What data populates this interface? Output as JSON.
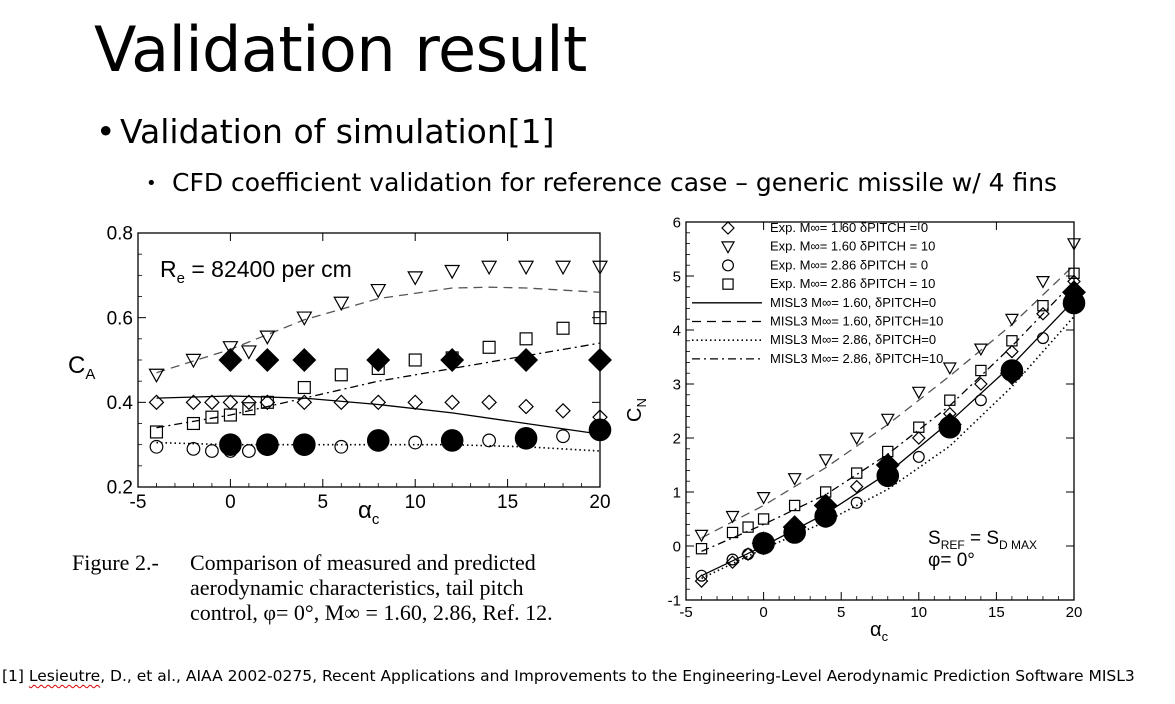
{
  "slide": {
    "title": "Validation result",
    "bullet1": "Validation of simulation[1]",
    "bullet2": "CFD coefficient validation for reference case – generic missile w/ 4 fins"
  },
  "caption": {
    "head": "Figure 2.-",
    "line1": "Comparison of measured and predicted",
    "line2": "aerodynamic characteristics, tail pitch",
    "line3": "control, φ= 0°, M∞ = 1.60, 2.86, Ref. 12."
  },
  "footnote": {
    "prefix": "[1] ",
    "author": "Lesieutre",
    "rest": ", D., et al., AIAA 2002-0275, Recent Applications and Improvements to the Engineering-Level Aerodynamic Prediction Software MISL3"
  },
  "colors": {
    "marker": "#000000",
    "open_marker": "#000000",
    "line": "#000000",
    "dashed_line": "#555555"
  },
  "chart_data": [
    {
      "type": "scatter",
      "ylabel": "C_A",
      "xlabel": "α_c",
      "annotation": "R_e = 82400 per cm",
      "xlim": [
        -5,
        20
      ],
      "ylim": [
        0.2,
        0.8
      ],
      "x_ticks": [
        "-5",
        "0",
        "5",
        "10",
        "15",
        "20"
      ],
      "y_ticks": [
        "0.2",
        "0.4",
        "0.6",
        "0.8"
      ],
      "series": [
        {
          "marker": "diamond-open",
          "points": [
            [
              -4,
              0.4
            ],
            [
              -2,
              0.4
            ],
            [
              -1,
              0.4
            ],
            [
              0,
              0.4
            ],
            [
              1,
              0.4
            ],
            [
              2,
              0.4
            ],
            [
              4,
              0.4
            ],
            [
              6,
              0.4
            ],
            [
              8,
              0.4
            ],
            [
              10,
              0.4
            ],
            [
              12,
              0.4
            ],
            [
              14,
              0.4
            ],
            [
              16,
              0.39
            ],
            [
              18,
              0.38
            ],
            [
              20,
              0.365
            ]
          ]
        },
        {
          "marker": "triangle-down-open",
          "points": [
            [
              -4,
              0.465
            ],
            [
              -2,
              0.5
            ],
            [
              0,
              0.53
            ],
            [
              1,
              0.52
            ],
            [
              2,
              0.555
            ],
            [
              4,
              0.6
            ],
            [
              6,
              0.635
            ],
            [
              8,
              0.665
            ],
            [
              10,
              0.695
            ],
            [
              12,
              0.71
            ],
            [
              14,
              0.72
            ],
            [
              16,
              0.72
            ],
            [
              18,
              0.72
            ],
            [
              20,
              0.72
            ]
          ]
        },
        {
          "marker": "circle-open",
          "points": [
            [
              -4,
              0.295
            ],
            [
              -2,
              0.29
            ],
            [
              -1,
              0.285
            ],
            [
              0,
              0.285
            ],
            [
              1,
              0.285
            ],
            [
              2,
              0.29
            ],
            [
              4,
              0.29
            ],
            [
              6,
              0.295
            ],
            [
              8,
              0.3
            ],
            [
              10,
              0.305
            ],
            [
              12,
              0.31
            ],
            [
              14,
              0.31
            ],
            [
              16,
              0.315
            ],
            [
              18,
              0.32
            ],
            [
              20,
              0.325
            ]
          ]
        },
        {
          "marker": "square-open",
          "points": [
            [
              -4,
              0.33
            ],
            [
              -2,
              0.35
            ],
            [
              -1,
              0.365
            ],
            [
              0,
              0.37
            ],
            [
              1,
              0.385
            ],
            [
              2,
              0.4
            ],
            [
              4,
              0.435
            ],
            [
              6,
              0.465
            ],
            [
              8,
              0.48
            ],
            [
              10,
              0.5
            ],
            [
              12,
              0.505
            ],
            [
              14,
              0.53
            ],
            [
              16,
              0.55
            ],
            [
              18,
              0.575
            ],
            [
              20,
              0.6
            ]
          ]
        },
        {
          "marker": "diamond-filled",
          "points": [
            [
              0,
              0.5
            ],
            [
              2,
              0.5
            ],
            [
              4,
              0.5
            ],
            [
              8,
              0.5
            ],
            [
              12,
              0.5
            ],
            [
              16,
              0.5
            ],
            [
              20,
              0.5
            ]
          ]
        },
        {
          "marker": "circle-filled",
          "points": [
            [
              0,
              0.3
            ],
            [
              2,
              0.3
            ],
            [
              4,
              0.3
            ],
            [
              8,
              0.31
            ],
            [
              12,
              0.31
            ],
            [
              16,
              0.315
            ],
            [
              20,
              0.335
            ]
          ]
        },
        {
          "line": "solid",
          "points": [
            [
              -4,
              0.41
            ],
            [
              0,
              0.415
            ],
            [
              4,
              0.41
            ],
            [
              8,
              0.395
            ],
            [
              12,
              0.375
            ],
            [
              16,
              0.35
            ],
            [
              20,
              0.325
            ]
          ]
        },
        {
          "line": "dashed",
          "points": [
            [
              -4,
              0.47
            ],
            [
              0,
              0.525
            ],
            [
              4,
              0.595
            ],
            [
              8,
              0.645
            ],
            [
              12,
              0.67
            ],
            [
              14,
              0.672
            ],
            [
              16,
              0.67
            ],
            [
              20,
              0.66
            ]
          ]
        },
        {
          "line": "dotted",
          "points": [
            [
              -4,
              0.305
            ],
            [
              0,
              0.3
            ],
            [
              4,
              0.3
            ],
            [
              8,
              0.3
            ],
            [
              12,
              0.3
            ],
            [
              16,
              0.295
            ],
            [
              20,
              0.285
            ]
          ]
        },
        {
          "line": "dashdot",
          "points": [
            [
              -4,
              0.34
            ],
            [
              0,
              0.37
            ],
            [
              4,
              0.41
            ],
            [
              8,
              0.45
            ],
            [
              12,
              0.48
            ],
            [
              16,
              0.51
            ],
            [
              20,
              0.54
            ]
          ]
        }
      ]
    },
    {
      "type": "scatter",
      "ylabel": "C_N",
      "xlabel": "α_c",
      "annotation": "S_REF = S_D MAX, φ= 0°",
      "xlim": [
        -5,
        20
      ],
      "ylim": [
        -1,
        6
      ],
      "x_ticks": [
        "-5",
        "0",
        "5",
        "10",
        "15",
        "20"
      ],
      "y_ticks": [
        "-1",
        "0",
        "1",
        "2",
        "3",
        "4",
        "5",
        "6"
      ],
      "legend": [
        {
          "label": "Exp. M∞= 1.60 δPITCH = 0",
          "marker": "diamond-open"
        },
        {
          "label": "Exp. M∞= 1.60 δPITCH = 10",
          "marker": "triangle-down-open"
        },
        {
          "label": "Exp. M∞= 2.86 δPITCH = 0",
          "marker": "circle-open"
        },
        {
          "label": "Exp. M∞= 2.86 δPITCH = 10",
          "marker": "square-open"
        },
        {
          "label": "MISL3 M∞= 1.60, δPITCH=0",
          "line": "solid"
        },
        {
          "label": "MISL3 M∞= 1.60, δPITCH=10",
          "line": "dashed"
        },
        {
          "label": "MISL3 M∞= 2.86, δPITCH=0",
          "line": "dotted"
        },
        {
          "label": "MISL3 M∞= 2.86, δPITCH=10",
          "line": "dashdot"
        }
      ],
      "series": [
        {
          "marker": "diamond-open",
          "points": [
            [
              -4,
              -0.65
            ],
            [
              -2,
              -0.3
            ],
            [
              -1,
              -0.15
            ],
            [
              0,
              0.0
            ],
            [
              2,
              0.3
            ],
            [
              4,
              0.65
            ],
            [
              6,
              1.1
            ],
            [
              8,
              1.5
            ],
            [
              10,
              2.0
            ],
            [
              12,
              2.45
            ],
            [
              14,
              3.0
            ],
            [
              16,
              3.6
            ],
            [
              18,
              4.3
            ],
            [
              20,
              4.9
            ]
          ]
        },
        {
          "marker": "triangle-down-open",
          "points": [
            [
              -4,
              0.2
            ],
            [
              -2,
              0.55
            ],
            [
              0,
              0.9
            ],
            [
              2,
              1.25
            ],
            [
              4,
              1.6
            ],
            [
              6,
              2.0
            ],
            [
              8,
              2.35
            ],
            [
              10,
              2.85
            ],
            [
              12,
              3.3
            ],
            [
              14,
              3.65
            ],
            [
              16,
              4.2
            ],
            [
              18,
              4.9
            ],
            [
              20,
              5.6
            ]
          ]
        },
        {
          "marker": "circle-open",
          "points": [
            [
              -4,
              -0.55
            ],
            [
              -2,
              -0.25
            ],
            [
              -1,
              -0.15
            ],
            [
              0,
              0.0
            ],
            [
              2,
              0.2
            ],
            [
              4,
              0.45
            ],
            [
              6,
              0.8
            ],
            [
              8,
              1.25
            ],
            [
              10,
              1.65
            ],
            [
              12,
              2.15
            ],
            [
              14,
              2.7
            ],
            [
              16,
              3.25
            ],
            [
              18,
              3.85
            ],
            [
              20,
              4.55
            ]
          ]
        },
        {
          "marker": "square-open",
          "points": [
            [
              -4,
              -0.05
            ],
            [
              -2,
              0.25
            ],
            [
              -1,
              0.35
            ],
            [
              0,
              0.5
            ],
            [
              2,
              0.75
            ],
            [
              4,
              1.0
            ],
            [
              6,
              1.35
            ],
            [
              8,
              1.75
            ],
            [
              10,
              2.2
            ],
            [
              12,
              2.7
            ],
            [
              14,
              3.25
            ],
            [
              16,
              3.8
            ],
            [
              18,
              4.45
            ],
            [
              20,
              5.05
            ]
          ]
        },
        {
          "marker": "diamond-filled",
          "points": [
            [
              0,
              0.05
            ],
            [
              2,
              0.35
            ],
            [
              4,
              0.75
            ],
            [
              8,
              1.5
            ],
            [
              12,
              2.25
            ],
            [
              16,
              3.2
            ],
            [
              20,
              4.7
            ]
          ]
        },
        {
          "marker": "circle-filled",
          "points": [
            [
              0,
              0.05
            ],
            [
              2,
              0.25
            ],
            [
              4,
              0.55
            ],
            [
              8,
              1.3
            ],
            [
              12,
              2.2
            ],
            [
              16,
              3.25
            ],
            [
              20,
              4.5
            ]
          ]
        },
        {
          "line": "solid",
          "points": [
            [
              -4,
              -0.55
            ],
            [
              0,
              0.0
            ],
            [
              4,
              0.6
            ],
            [
              8,
              1.35
            ],
            [
              12,
              2.3
            ],
            [
              16,
              3.35
            ],
            [
              20,
              4.55
            ]
          ]
        },
        {
          "line": "dashed",
          "points": [
            [
              -4,
              0.15
            ],
            [
              0,
              0.75
            ],
            [
              4,
              1.45
            ],
            [
              8,
              2.25
            ],
            [
              12,
              3.15
            ],
            [
              16,
              4.1
            ],
            [
              20,
              5.2
            ]
          ]
        },
        {
          "line": "dotted",
          "points": [
            [
              -4,
              -0.6
            ],
            [
              0,
              -0.05
            ],
            [
              4,
              0.45
            ],
            [
              8,
              1.05
            ],
            [
              12,
              1.85
            ],
            [
              16,
              2.95
            ],
            [
              20,
              4.25
            ]
          ]
        },
        {
          "line": "dashdot",
          "points": [
            [
              -4,
              -0.1
            ],
            [
              0,
              0.4
            ],
            [
              4,
              0.95
            ],
            [
              8,
              1.7
            ],
            [
              12,
              2.6
            ],
            [
              16,
              3.7
            ],
            [
              20,
              4.9
            ]
          ]
        }
      ]
    }
  ]
}
